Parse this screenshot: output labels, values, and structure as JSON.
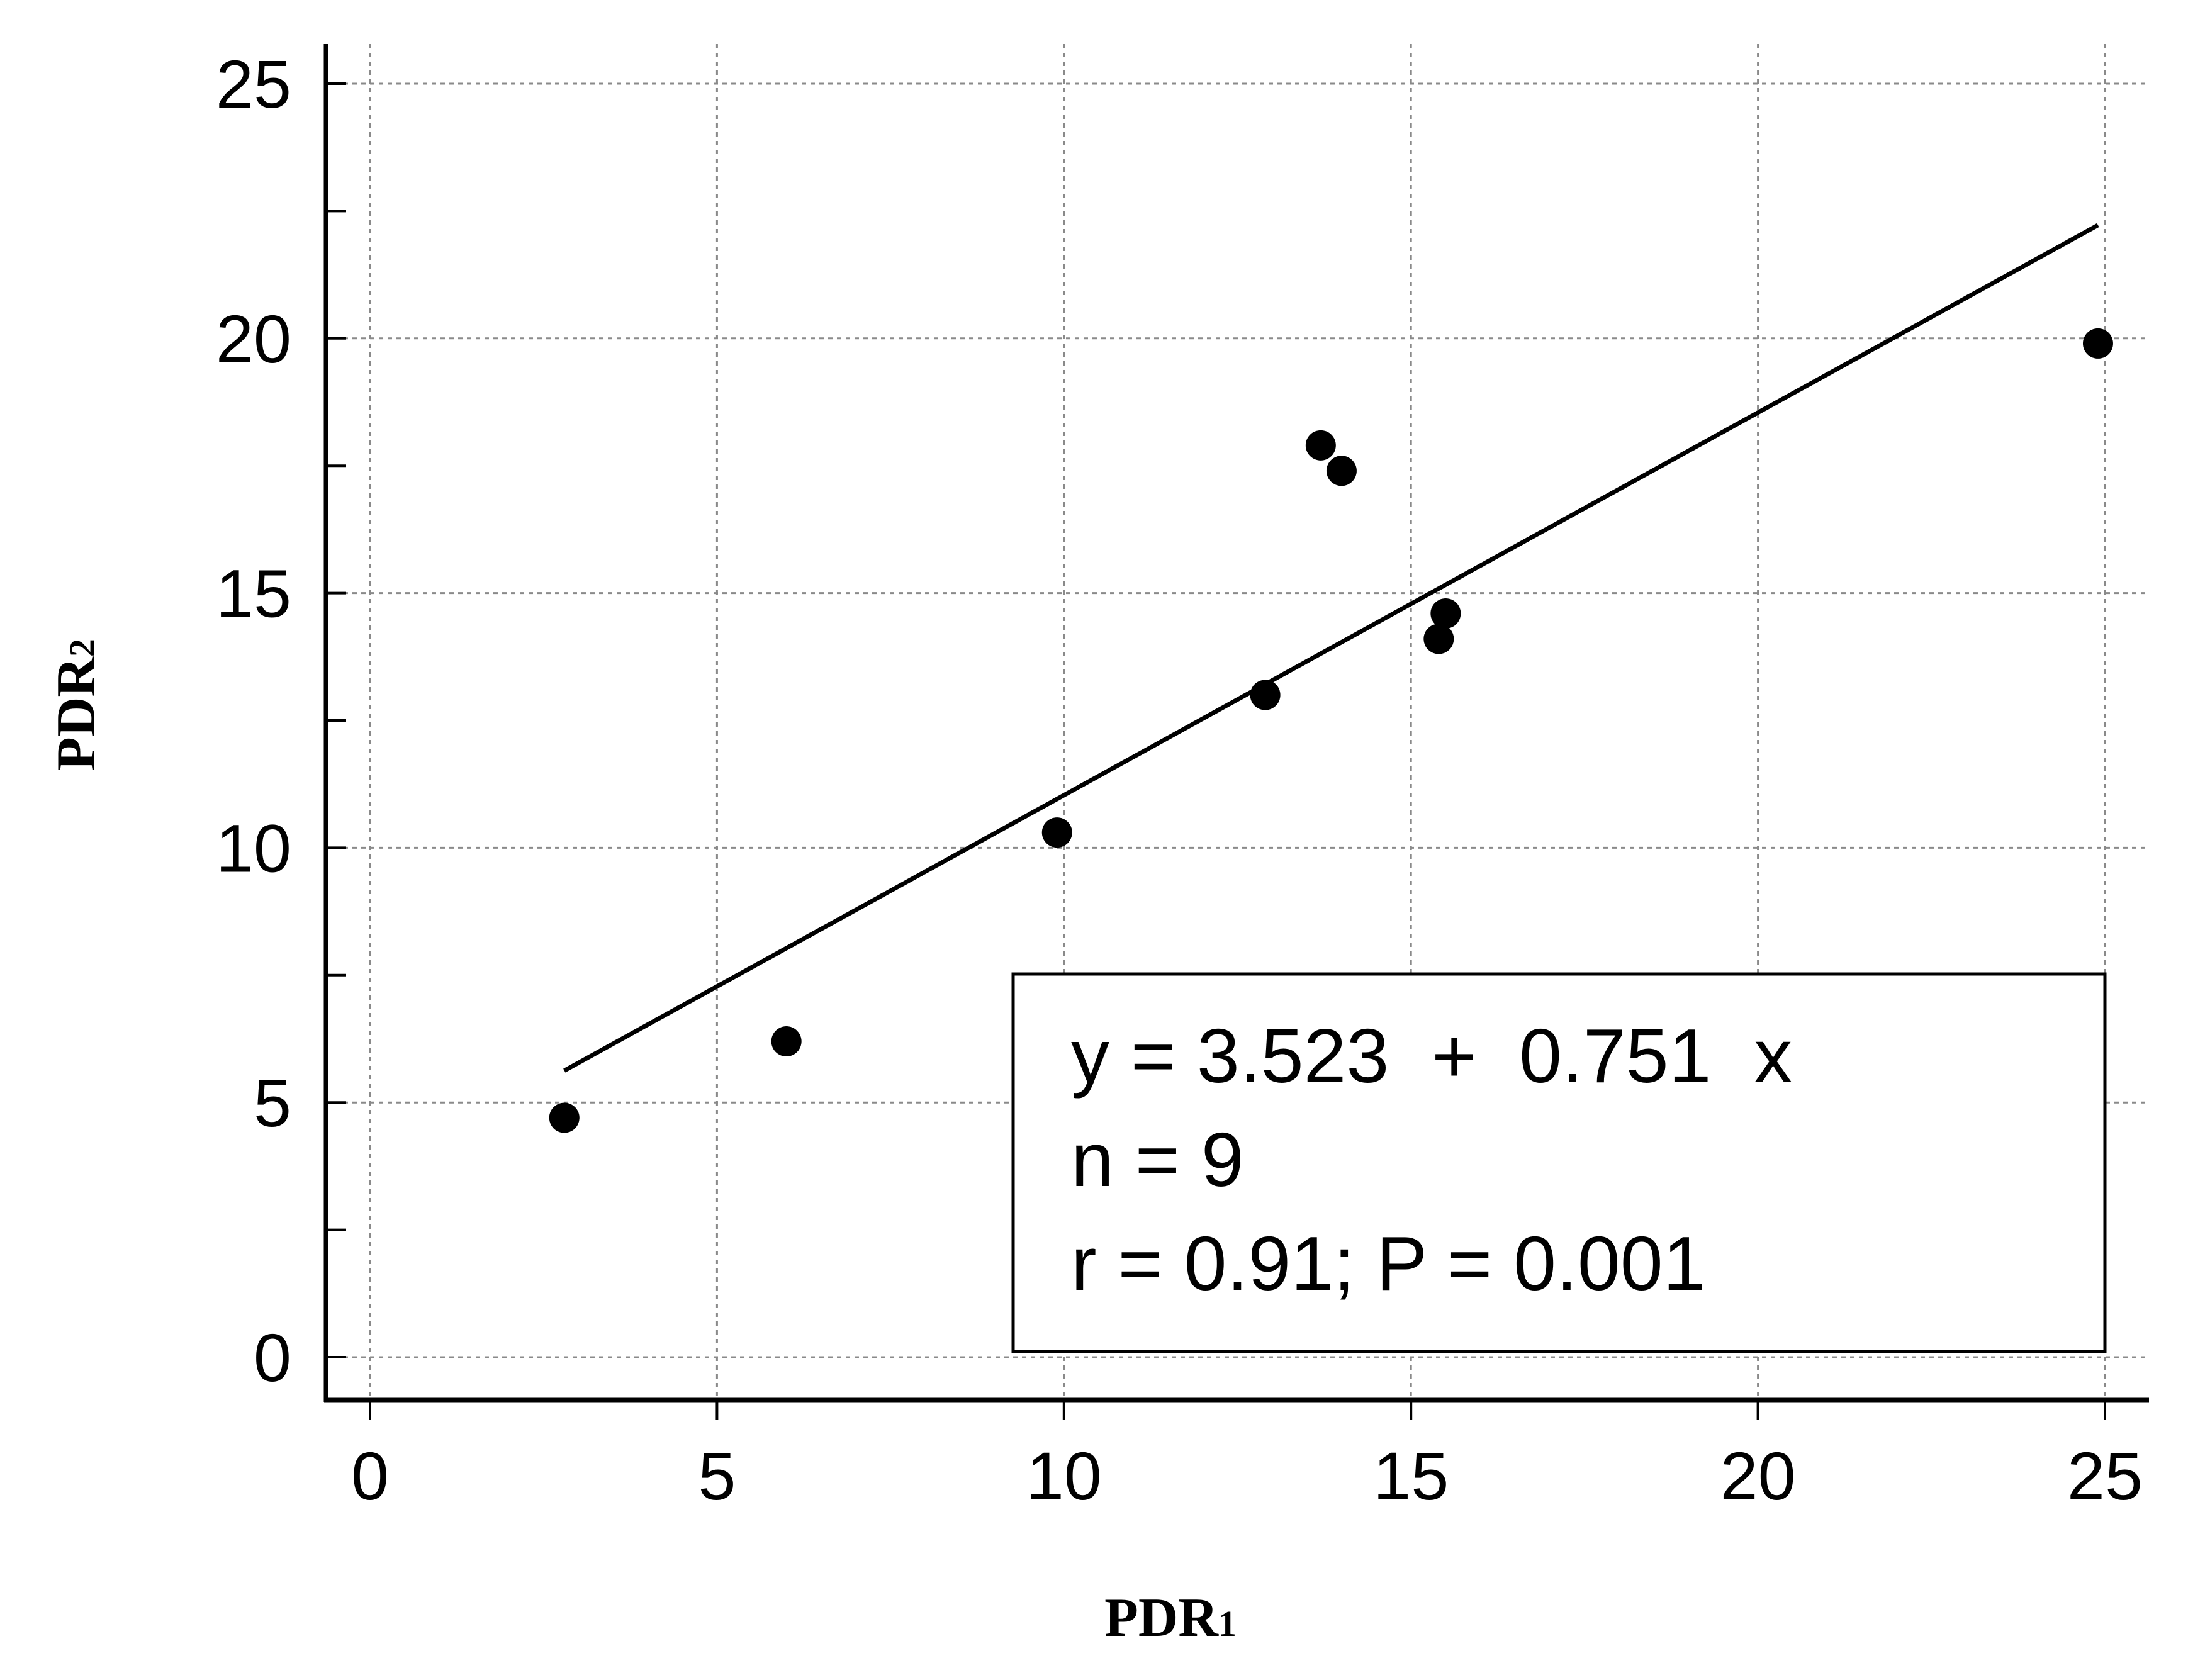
{
  "chart_data": {
    "type": "scatter",
    "xlabel": {
      "main": "PDR",
      "sub": "1"
    },
    "ylabel": {
      "main": "PDR",
      "sub": "2"
    },
    "xlim": [
      0,
      25
    ],
    "ylim": [
      0,
      25
    ],
    "x_ticks": [
      0,
      5,
      10,
      15,
      20,
      25
    ],
    "y_ticks": [
      0,
      5,
      10,
      15,
      20,
      25
    ],
    "grid": true,
    "points": [
      {
        "x": 2.8,
        "y": 4.7
      },
      {
        "x": 6.0,
        "y": 6.2
      },
      {
        "x": 9.9,
        "y": 10.3
      },
      {
        "x": 12.9,
        "y": 13.0
      },
      {
        "x": 13.7,
        "y": 17.9
      },
      {
        "x": 14.0,
        "y": 17.4
      },
      {
        "x": 15.4,
        "y": 14.1
      },
      {
        "x": 15.5,
        "y": 14.6
      },
      {
        "x": 24.9,
        "y": 19.9
      }
    ],
    "fit": {
      "intercept": 3.523,
      "slope": 0.751,
      "x_range": [
        2.8,
        24.9
      ]
    },
    "annotation": {
      "lines": [
        "y = 3.523  +  0.751  x",
        "n = 9",
        "r = 0.91; P = 0.001"
      ],
      "placement": "bottom-right"
    }
  }
}
